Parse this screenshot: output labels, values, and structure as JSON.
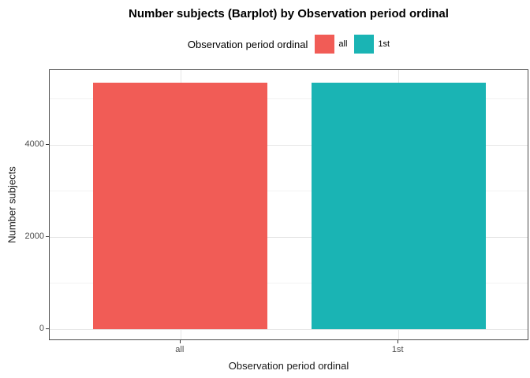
{
  "title": "Number subjects (Barplot) by Observation period ordinal",
  "legend": {
    "title": "Observation period ordinal",
    "items": [
      {
        "label": "all",
        "color": "#F15C56"
      },
      {
        "label": "1st",
        "color": "#1AB4B4"
      }
    ]
  },
  "chart_data": {
    "type": "bar",
    "title": "Number subjects (Barplot) by Observation period ordinal",
    "categories": [
      "all",
      "1st"
    ],
    "values": [
      5350,
      5350
    ],
    "series": [
      {
        "name": "all",
        "value": 5350,
        "color": "#F15C56"
      },
      {
        "name": "1st",
        "value": 5350,
        "color": "#1AB4B4"
      }
    ],
    "xlabel": "Observation period ordinal",
    "ylabel": "Number subjects",
    "y_ticks": [
      0,
      2000,
      4000
    ],
    "y_minor_ticks": [
      1000,
      3000,
      5000
    ],
    "ylim": [
      -260,
      5620
    ],
    "grid": true,
    "legend_position": "top",
    "panel_border_color": "#4d4d4d",
    "grid_major_color": "#e6e6e6",
    "grid_minor_color": "#f2f2f2"
  }
}
